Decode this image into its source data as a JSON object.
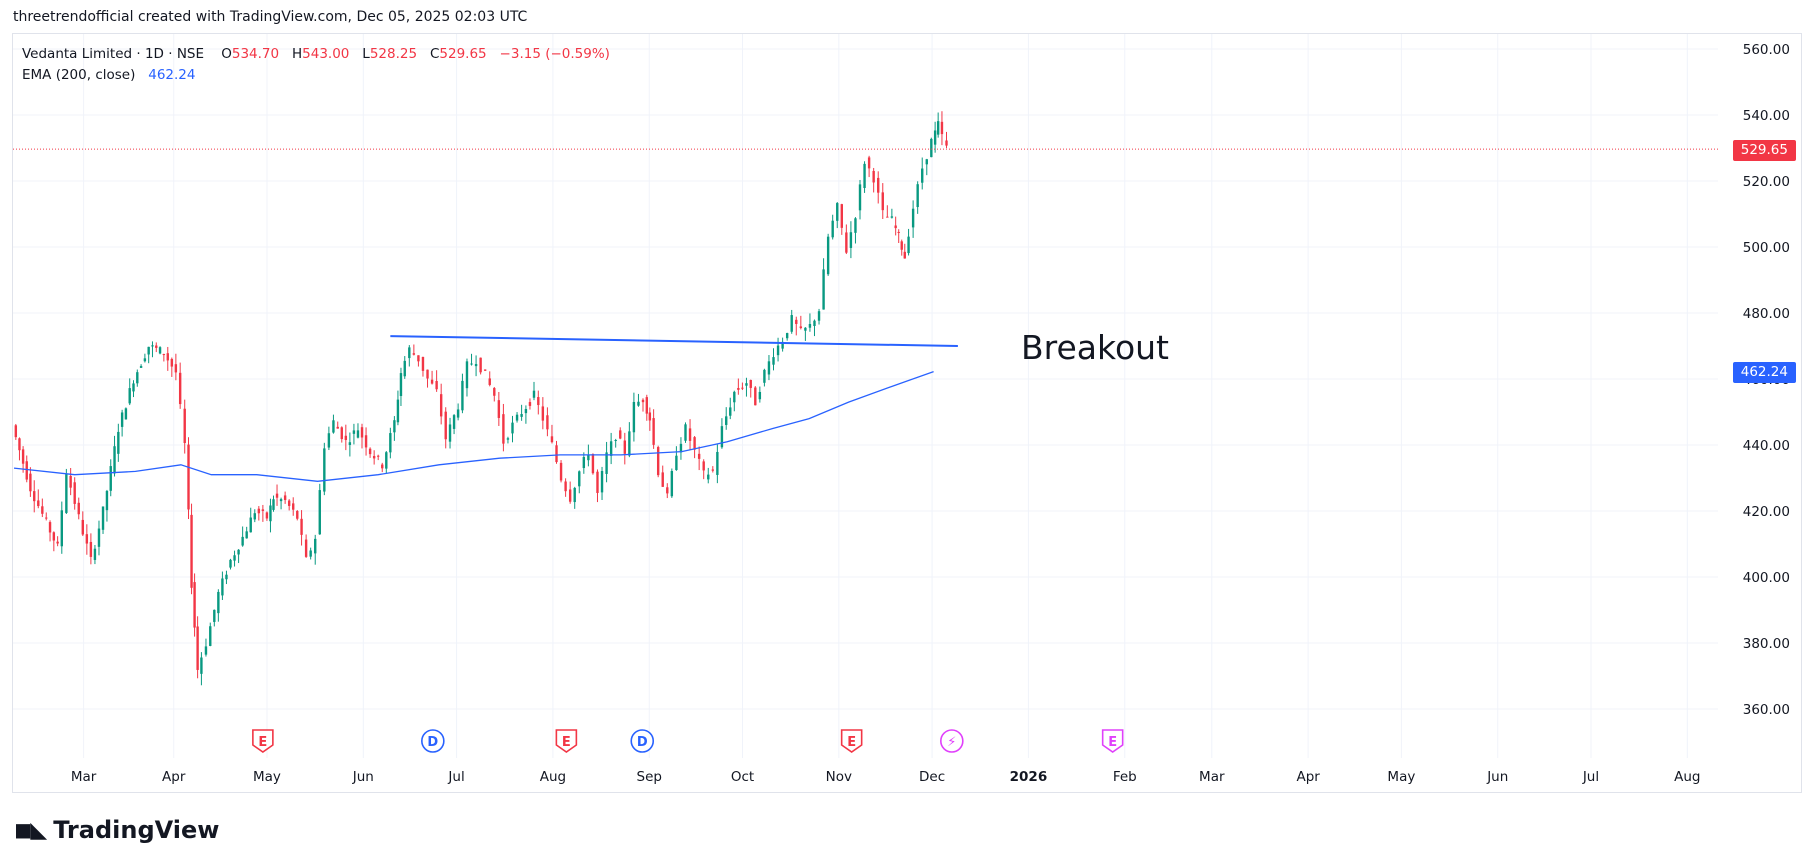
{
  "caption": "threetrendofficial created with TradingView.com, Dec 05, 2025 02:03 UTC",
  "legend": {
    "title": "Vedanta Limited · 1D · NSE",
    "o_label": "O",
    "o_value": "534.70",
    "h_label": "H",
    "h_value": "543.00",
    "l_label": "L",
    "l_value": "528.25",
    "c_label": "C",
    "c_value": "529.65",
    "change": "−3.15 (−0.59%)",
    "ema_label": "EMA (200, close)",
    "ema_value": "462.24"
  },
  "annotation": "Breakout",
  "price_tags": {
    "last": "529.65",
    "ema": "462.24"
  },
  "brand": "TradingView",
  "colors": {
    "up": "#089981",
    "down": "#f23645",
    "ema": "#2962ff",
    "line": "#2962ff",
    "earnings": "#f23645",
    "dividend": "#2962ff",
    "future": "#e040fb"
  },
  "chart_data": {
    "type": "candlestick",
    "title": "Vedanta Limited · 1D · NSE",
    "y_axis": {
      "ticks": [
        360,
        380,
        400,
        420,
        440,
        460,
        480,
        500,
        520,
        540,
        560
      ],
      "tick_labels": [
        "360.00",
        "380.00",
        "400.00",
        "420.00",
        "440.00",
        "460.00",
        "480.00",
        "500.00",
        "520.00",
        "540.00",
        "560.00"
      ]
    },
    "x_axis": {
      "ticks": [
        {
          "label": "Mar",
          "day": 30
        },
        {
          "label": "Apr",
          "day": 59
        },
        {
          "label": "May",
          "day": 89
        },
        {
          "label": "Jun",
          "day": 120
        },
        {
          "label": "Jul",
          "day": 150
        },
        {
          "label": "Aug",
          "day": 181
        },
        {
          "label": "Sep",
          "day": 212
        },
        {
          "label": "Oct",
          "day": 242
        },
        {
          "label": "Nov",
          "day": 273
        },
        {
          "label": "Dec",
          "day": 303
        },
        {
          "label": "2026",
          "day": 334
        },
        {
          "label": "Feb",
          "day": 365
        },
        {
          "label": "Mar",
          "day": 393
        },
        {
          "label": "Apr",
          "day": 424
        },
        {
          "label": "May",
          "day": 454
        },
        {
          "label": "Jun",
          "day": 485
        },
        {
          "label": "Jul",
          "day": 515
        },
        {
          "label": "Aug",
          "day": 546
        }
      ]
    },
    "approx_close_path": [
      [
        0,
        446
      ],
      [
        6,
        427
      ],
      [
        10,
        419
      ],
      [
        15,
        409
      ],
      [
        18,
        432
      ],
      [
        22,
        418
      ],
      [
        26,
        405
      ],
      [
        30,
        420
      ],
      [
        35,
        445
      ],
      [
        40,
        460
      ],
      [
        45,
        470
      ],
      [
        50,
        468
      ],
      [
        54,
        462
      ],
      [
        57,
        440
      ],
      [
        59,
        398
      ],
      [
        61,
        372
      ],
      [
        64,
        380
      ],
      [
        68,
        395
      ],
      [
        72,
        405
      ],
      [
        76,
        412
      ],
      [
        80,
        420
      ],
      [
        84,
        418
      ],
      [
        86,
        424
      ],
      [
        90,
        423
      ],
      [
        94,
        418
      ],
      [
        97,
        405
      ],
      [
        100,
        412
      ],
      [
        103,
        440
      ],
      [
        106,
        447
      ],
      [
        110,
        441
      ],
      [
        114,
        445
      ],
      [
        118,
        438
      ],
      [
        122,
        434
      ],
      [
        126,
        447
      ],
      [
        128,
        462
      ],
      [
        131,
        469
      ],
      [
        134,
        466
      ],
      [
        137,
        460
      ],
      [
        140,
        456
      ],
      [
        143,
        442
      ],
      [
        147,
        452
      ],
      [
        150,
        464
      ],
      [
        153,
        466
      ],
      [
        156,
        461
      ],
      [
        159,
        455
      ],
      [
        162,
        441
      ],
      [
        165,
        446
      ],
      [
        168,
        450
      ],
      [
        172,
        455
      ],
      [
        175,
        448
      ],
      [
        178,
        440
      ],
      [
        181,
        430
      ],
      [
        184,
        424
      ],
      [
        187,
        432
      ],
      [
        190,
        438
      ],
      [
        193,
        425
      ],
      [
        196,
        437
      ],
      [
        199,
        443
      ],
      [
        202,
        438
      ],
      [
        205,
        452
      ],
      [
        208,
        454
      ],
      [
        210,
        448
      ],
      [
        213,
        432
      ],
      [
        216,
        424
      ],
      [
        219,
        438
      ],
      [
        222,
        445
      ],
      [
        225,
        438
      ],
      [
        228,
        431
      ],
      [
        231,
        432
      ],
      [
        234,
        445
      ],
      [
        238,
        456
      ],
      [
        242,
        459
      ],
      [
        245,
        453
      ],
      [
        248,
        462
      ],
      [
        251,
        468
      ],
      [
        254,
        472
      ],
      [
        257,
        478
      ],
      [
        260,
        474
      ],
      [
        263,
        476
      ],
      [
        266,
        481
      ],
      [
        269,
        503
      ],
      [
        272,
        512
      ],
      [
        275,
        499
      ],
      [
        278,
        510
      ],
      [
        281,
        526
      ],
      [
        284,
        521
      ],
      [
        287,
        510
      ],
      [
        290,
        508
      ],
      [
        292,
        503
      ],
      [
        294,
        497
      ],
      [
        297,
        512
      ],
      [
        300,
        524
      ],
      [
        303,
        532
      ],
      [
        305,
        537
      ],
      [
        308,
        530
      ]
    ],
    "ema_200": {
      "name": "EMA (200, close)",
      "points": [
        [
          0,
          433
        ],
        [
          20,
          431
        ],
        [
          40,
          432
        ],
        [
          55,
          434
        ],
        [
          65,
          431
        ],
        [
          80,
          431
        ],
        [
          100,
          429
        ],
        [
          120,
          431
        ],
        [
          140,
          434
        ],
        [
          160,
          436
        ],
        [
          180,
          437
        ],
        [
          200,
          437
        ],
        [
          220,
          438
        ],
        [
          235,
          441
        ],
        [
          250,
          445
        ],
        [
          262,
          448
        ],
        [
          275,
          453
        ],
        [
          290,
          458
        ],
        [
          303,
          462.24
        ]
      ]
    },
    "trendline": {
      "from": [
        124,
        473
      ],
      "to": [
        311,
        470
      ]
    },
    "markers": [
      {
        "type": "earnings",
        "label": "E",
        "day": 82
      },
      {
        "type": "dividend",
        "label": "D",
        "day": 138
      },
      {
        "type": "earnings",
        "label": "E",
        "day": 182
      },
      {
        "type": "dividend",
        "label": "D",
        "day": 207
      },
      {
        "type": "earnings",
        "label": "E",
        "day": 276
      },
      {
        "type": "future",
        "label": "⚡",
        "day": 309
      },
      {
        "type": "future-earnings",
        "label": "E",
        "day": 362
      }
    ],
    "last_price": 529.65
  }
}
